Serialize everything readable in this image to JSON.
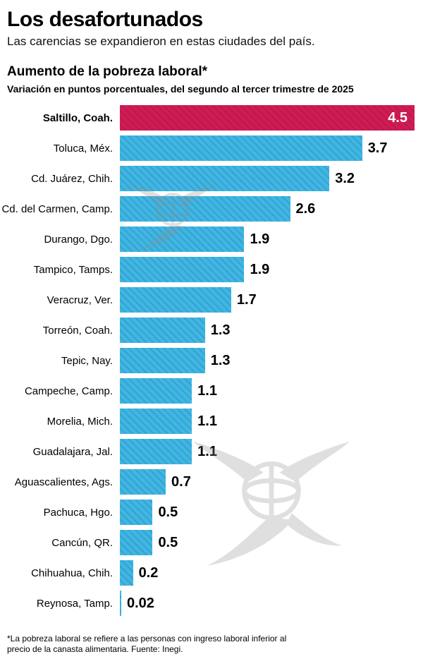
{
  "header": {
    "title": "Los desafortunados",
    "subtitle": "Las carencias se expandieron en estas ciudades del país.",
    "chart_title": "Aumento de la pobreza laboral*",
    "chart_subtitle": "Variación en puntos porcentuales, del segundo al tercer trimestre de 2025"
  },
  "chart_data": {
    "type": "bar",
    "orientation": "horizontal",
    "title": "Aumento de la pobreza laboral*",
    "subtitle": "Variación en puntos porcentuales, del segundo al tercer trimestre de 2025",
    "categories": [
      "Saltillo, Coah.",
      "Toluca, Méx.",
      "Cd. Juárez, Chih.",
      "Cd. del Carmen, Camp.",
      "Durango, Dgo.",
      "Tampico, Tamps.",
      "Veracruz, Ver.",
      "Torreón, Coah.",
      "Tepic, Nay.",
      "Campeche, Camp.",
      "Morelia, Mich.",
      "Guadalajara, Jal.",
      "Aguascalientes, Ags.",
      "Pachuca, Hgo.",
      "Cancún, QR.",
      "Chihuahua, Chih.",
      "Reynosa, Tamp."
    ],
    "values": [
      4.5,
      3.7,
      3.2,
      2.6,
      1.9,
      1.9,
      1.7,
      1.3,
      1.3,
      1.1,
      1.1,
      1.1,
      0.7,
      0.5,
      0.5,
      0.2,
      0.02
    ],
    "value_labels": [
      "4.5",
      "3.7",
      "3.2",
      "2.6",
      "1.9",
      "1.9",
      "1.7",
      "1.3",
      "1.3",
      "1.1",
      "1.1",
      "1.1",
      "0.7",
      "0.5",
      "0.5",
      "0.2",
      "0.02"
    ],
    "highlight_index": 0,
    "xlim": [
      0,
      4.5
    ],
    "xlabel": "",
    "ylabel": "",
    "grid": false,
    "legend": "none",
    "colors": {
      "bar": "#3fb6e3",
      "highlight": "#d31a52",
      "value_text": "#000000",
      "highlight_value_text": "#ffffff"
    }
  },
  "footnote": "*La pobreza laboral se refiere a las personas con ingreso laboral inferior al precio de la canasta alimentaria. Fuente: Inegi."
}
